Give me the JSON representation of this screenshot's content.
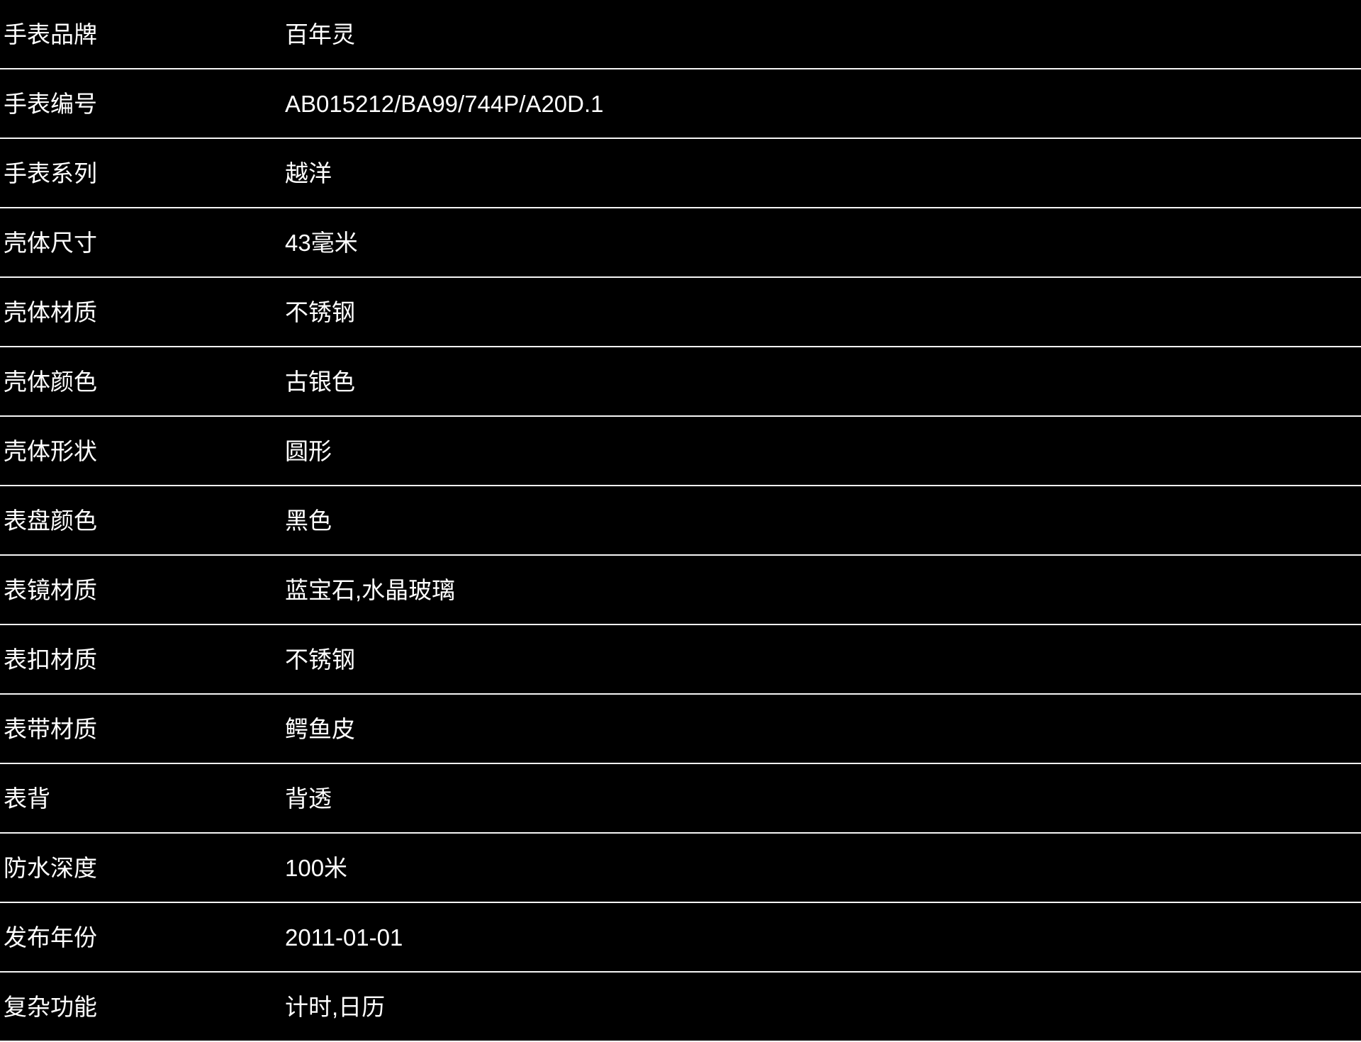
{
  "theme": {
    "background": "#000000",
    "text": "#ffffff",
    "divider": "#f5f5f5"
  },
  "table": {
    "rows": [
      {
        "label": "手表品牌",
        "value": "百年灵"
      },
      {
        "label": "手表编号",
        "value": "AB015212/BA99/744P/A20D.1"
      },
      {
        "label": "手表系列",
        "value": "越洋"
      },
      {
        "label": "壳体尺寸",
        "value": "43毫米"
      },
      {
        "label": "壳体材质",
        "value": "不锈钢"
      },
      {
        "label": "壳体颜色",
        "value": "古银色"
      },
      {
        "label": "壳体形状",
        "value": "圆形"
      },
      {
        "label": "表盘颜色",
        "value": "黑色"
      },
      {
        "label": "表镜材质",
        "value": "蓝宝石,水晶玻璃"
      },
      {
        "label": "表扣材质",
        "value": "不锈钢"
      },
      {
        "label": "表带材质",
        "value": "鳄鱼皮"
      },
      {
        "label": "表背",
        "value": "背透"
      },
      {
        "label": "防水深度",
        "value": "100米"
      },
      {
        "label": "发布年份",
        "value": "2011-01-01"
      },
      {
        "label": "复杂功能",
        "value": "计时,日历"
      }
    ]
  }
}
